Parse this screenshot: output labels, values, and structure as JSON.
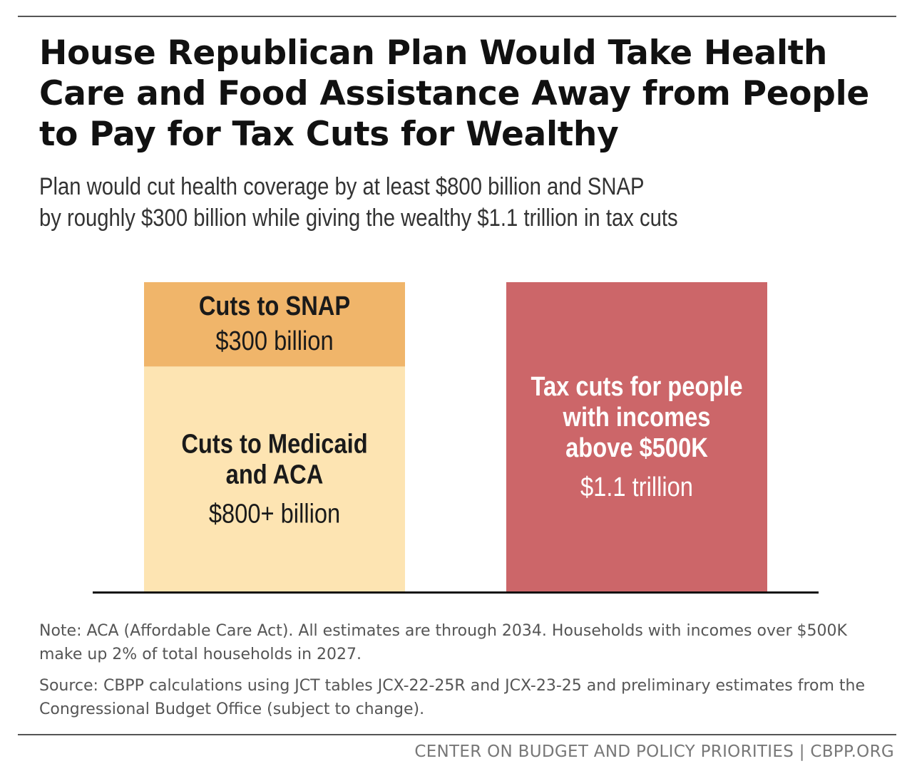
{
  "header": {
    "title": "House Republican Plan Would Take Health Care and Food Assistance Away from People to Pay for Tax Cuts for Wealthy",
    "subtitle_line1": "Plan would cut health coverage by at least $800 billion and SNAP",
    "subtitle_line2": "by roughly $300 billion while giving the wealthy $1.1 trillion in tax cuts"
  },
  "chart_data": {
    "type": "bar",
    "stacked": true,
    "unit": "billion dollars",
    "grid": false,
    "bars": [
      {
        "segments": [
          {
            "label_lines": [
              "Cuts to Medicaid",
              "and ACA"
            ],
            "value_label": "$800+ billion",
            "value": 800,
            "color": "#fde4b2"
          },
          {
            "label_lines": [
              "Cuts to SNAP"
            ],
            "value_label": "$300 billion",
            "value": 300,
            "color": "#f0b56a"
          }
        ]
      },
      {
        "segments": [
          {
            "label_lines": [
              "Tax cuts for people",
              "with incomes",
              "above $500K"
            ],
            "value_label": "$1.1 trillion",
            "value": 1100,
            "color": "#cc6669"
          }
        ]
      }
    ]
  },
  "notes": {
    "note": "Note: ACA (Affordable Care Act). All estimates are through 2034. Households with incomes over $500K make up 2% of total households in 2027.",
    "source": "Source: CBPP calculations using JCT tables JCX-22-25R and JCX-23-25 and preliminary estimates from the Congressional Budget Office (subject to change)."
  },
  "footer": {
    "org": "CENTER ON BUDGET AND POLICY PRIORITIES | CBPP.ORG"
  }
}
